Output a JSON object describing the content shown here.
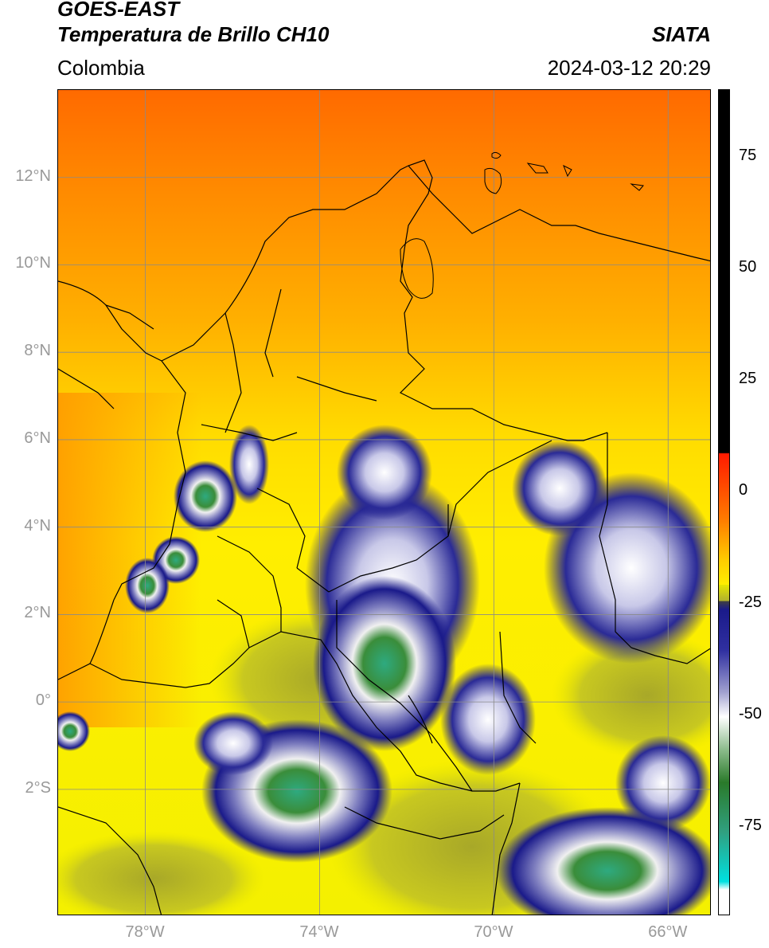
{
  "header": {
    "title_line1": "GOES-EAST",
    "title_line2": "Temperatura de Brillo CH10",
    "region": "Colombia",
    "source": "SIATA",
    "datetime": "2024-03-12 20:29"
  },
  "map": {
    "lat_range": [
      -4.9,
      14.0
    ],
    "lon_range": [
      -80.0,
      -65.0
    ],
    "lat_ticks": [
      {
        "value": 12,
        "label": "12°N"
      },
      {
        "value": 10,
        "label": "10°N"
      },
      {
        "value": 8,
        "label": "8°N"
      },
      {
        "value": 6,
        "label": "6°N"
      },
      {
        "value": 4,
        "label": "4°N"
      },
      {
        "value": 2,
        "label": "2°N"
      },
      {
        "value": 0,
        "label": "0°"
      },
      {
        "value": -2,
        "label": "2°S"
      }
    ],
    "lon_ticks": [
      {
        "value": -78,
        "label": "78°W"
      },
      {
        "value": -74,
        "label": "74°W"
      },
      {
        "value": -70,
        "label": "70°W"
      },
      {
        "value": -66,
        "label": "66°W"
      }
    ],
    "grid": true
  },
  "colorbar": {
    "range": [
      -95,
      90
    ],
    "ticks": [
      {
        "value": 75,
        "label": "75"
      },
      {
        "value": 50,
        "label": "50"
      },
      {
        "value": 25,
        "label": "25"
      },
      {
        "value": 0,
        "label": "0"
      },
      {
        "value": -25,
        "label": "-25"
      },
      {
        "value": -50,
        "label": "-50"
      },
      {
        "value": -75,
        "label": "-75"
      }
    ]
  }
}
